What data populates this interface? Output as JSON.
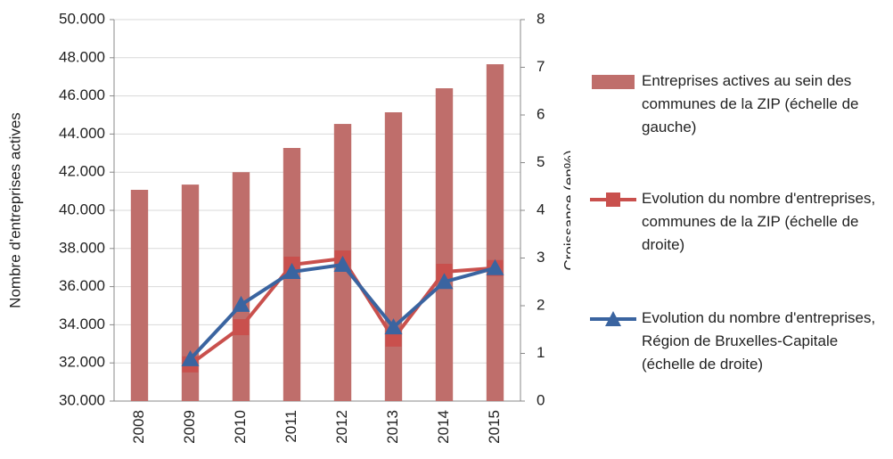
{
  "chart_data": {
    "type": "bar_line",
    "categories": [
      "2008",
      "2009",
      "2010",
      "2011",
      "2012",
      "2013",
      "2014",
      "2015"
    ],
    "ylabel": "Nombre d'entreprises actives",
    "y2label": "Croissance (en%)",
    "ylim": [
      30000,
      50000
    ],
    "yticks": [
      {
        "value": 30000,
        "label": "30.000"
      },
      {
        "value": 32000,
        "label": "32.000"
      },
      {
        "value": 34000,
        "label": "34.000"
      },
      {
        "value": 36000,
        "label": "36.000"
      },
      {
        "value": 38000,
        "label": "38.000"
      },
      {
        "value": 40000,
        "label": "40.000"
      },
      {
        "value": 42000,
        "label": "42.000"
      },
      {
        "value": 44000,
        "label": "44.000"
      },
      {
        "value": 46000,
        "label": "46.000"
      },
      {
        "value": 48000,
        "label": "48.000"
      },
      {
        "value": 50000,
        "label": "50.000"
      }
    ],
    "y2lim": [
      0,
      8
    ],
    "y2ticks": [
      0,
      1,
      2,
      3,
      4,
      5,
      6,
      7,
      8
    ],
    "grid": true,
    "legend": "right",
    "series": [
      {
        "name": "Entreprises actives au sein des communes de la ZIP (échelle de gauche)",
        "type": "bar",
        "color": "#bf6e6b",
        "values": [
          41075,
          41350,
          42000,
          43270,
          44530,
          45140,
          46400,
          47660
        ]
      },
      {
        "name": "Evolution du nombre d'entreprises, communes de la ZIP (échelle de droite)",
        "type": "line",
        "marker": "square",
        "axis": "y2",
        "color": "#c9504d",
        "values": [
          null,
          0.77,
          1.55,
          2.86,
          2.99,
          1.31,
          2.71,
          2.79
        ]
      },
      {
        "name": "Evolution du nombre d'entreprises, Région de Bruxelles-Capitale (échelle de droite)",
        "type": "line",
        "marker": "triangle",
        "axis": "y2",
        "color": "#3a64a0",
        "values": [
          null,
          0.88,
          2.02,
          2.71,
          2.86,
          1.55,
          2.5,
          2.79
        ]
      }
    ]
  }
}
